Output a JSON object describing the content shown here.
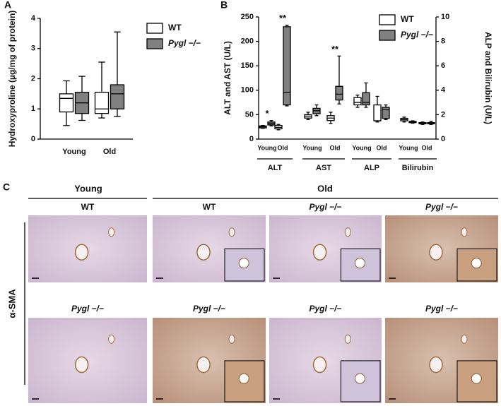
{
  "chart_data": [
    {
      "type": "box",
      "panel_label": "A",
      "ylabel": "Hydroxyproline (µg/mg of protein)",
      "categories": [
        "Young",
        "Old"
      ],
      "ylim": [
        0,
        4
      ],
      "yticks": [
        0,
        1,
        2,
        3,
        4
      ],
      "series": [
        {
          "name": "WT",
          "color": "#ffffff",
          "values": [
            {
              "min": 0.45,
              "q1": 0.9,
              "median": 1.35,
              "q3": 1.5,
              "max": 1.93
            },
            {
              "min": 0.7,
              "q1": 0.85,
              "median": 1.0,
              "q3": 1.55,
              "max": 2.55
            }
          ]
        },
        {
          "name": "Pygl −/−",
          "color": "#808080",
          "values": [
            {
              "min": 0.62,
              "q1": 0.85,
              "median": 1.2,
              "q3": 1.55,
              "max": 2.08
            },
            {
              "min": 0.75,
              "q1": 1.0,
              "median": 1.5,
              "q3": 1.8,
              "max": 3.55
            }
          ]
        }
      ]
    },
    {
      "type": "box",
      "panel_label": "B",
      "ylabel": "ALT and AST (U/L)",
      "y2label": "ALP and Bilirubin (U/L)",
      "categories": [
        "Young",
        "Old",
        "Young",
        "Old",
        "Young",
        "Old",
        "Young",
        "Old"
      ],
      "groups": [
        {
          "name": "ALT",
          "axis": "y"
        },
        {
          "name": "AST",
          "axis": "y"
        },
        {
          "name": "ALP",
          "axis": "y2"
        },
        {
          "name": "Bilirubin",
          "axis": "y2"
        }
      ],
      "ylim": [
        0,
        250
      ],
      "yticks": [
        0,
        50,
        100,
        150,
        200,
        250
      ],
      "y2lim": [
        0,
        10
      ],
      "y2ticks": [
        0,
        2,
        4,
        6,
        8,
        10
      ],
      "series": [
        {
          "name": "WT",
          "color": "#ffffff",
          "values": [
            {
              "min": 22,
              "q1": 23,
              "median": 25,
              "q3": 27,
              "max": 28
            },
            {
              "min": 19,
              "q1": 21,
              "median": 24,
              "q3": 28,
              "max": 30
            },
            {
              "min": 40,
              "q1": 43,
              "median": 47,
              "q3": 50,
              "max": 55
            },
            {
              "min": 32,
              "q1": 38,
              "median": 43,
              "q3": 48,
              "max": 55
            },
            {
              "min": 2.6,
              "q1": 2.8,
              "median": 3.0,
              "q3": 3.4,
              "max": 3.6
            },
            {
              "min": 1.4,
              "q1": 1.5,
              "median": 1.5,
              "q3": 2.8,
              "max": 3.5
            },
            {
              "min": 1.4,
              "q1": 1.5,
              "median": 1.6,
              "q3": 1.7,
              "max": 1.8
            },
            {
              "min": 1.2,
              "q1": 1.25,
              "median": 1.3,
              "q3": 1.35,
              "max": 1.4
            }
          ]
        },
        {
          "name": "Pygl −/−",
          "color": "#808080",
          "significance": [
            "*",
            "**",
            null,
            "**",
            null,
            null,
            null,
            null
          ],
          "values": [
            {
              "min": 27,
              "q1": 29,
              "median": 32,
              "q3": 35,
              "max": 38
            },
            {
              "min": 68,
              "q1": 70,
              "median": 95,
              "q3": 230,
              "max": 233
            },
            {
              "min": 48,
              "q1": 52,
              "median": 58,
              "q3": 63,
              "max": 70
            },
            {
              "min": 72,
              "q1": 80,
              "median": 92,
              "q3": 108,
              "max": 170
            },
            {
              "min": 2.6,
              "q1": 2.8,
              "median": 3.0,
              "q3": 3.8,
              "max": 4.6
            },
            {
              "min": 1.6,
              "q1": 1.7,
              "median": 2.4,
              "q3": 2.6,
              "max": 2.8
            },
            {
              "min": 1.3,
              "q1": 1.35,
              "median": 1.4,
              "q3": 1.45,
              "max": 1.5
            },
            {
              "min": 1.2,
              "q1": 1.25,
              "median": 1.3,
              "q3": 1.35,
              "max": 1.45
            }
          ]
        }
      ]
    }
  ],
  "panel_c": {
    "panel_label": "C",
    "headers": [
      "Young",
      "Old"
    ],
    "row_label": "α-SMA",
    "captions": [
      [
        "WT",
        "WT",
        "Pygl −/−",
        "Pygl −/−"
      ],
      [
        "Pygl −/−",
        "Pygl −/−",
        "Pygl −/−",
        "Pygl −/−"
      ]
    ]
  }
}
